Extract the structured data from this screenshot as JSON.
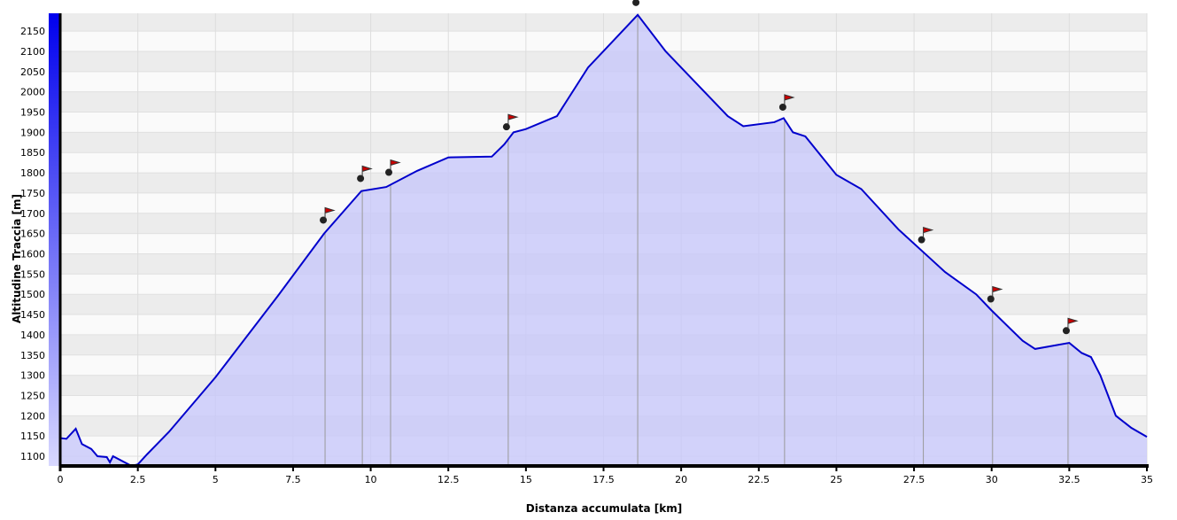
{
  "chart_data": {
    "type": "area",
    "x_label": "Distanza accumulata [km]",
    "y_label": "Altitudine Traccia [m]",
    "color": "#0000cc",
    "fill": "#c8c8fa",
    "x": [
      0,
      0.2,
      0.5,
      0.7,
      1.0,
      1.2,
      1.5,
      1.6,
      1.7,
      2.3,
      2.5,
      2.8,
      3.5,
      5,
      7,
      8.5,
      9.7,
      10.5,
      11.5,
      12.5,
      13.9,
      14.3,
      14.6,
      15.0,
      16,
      17,
      18.6,
      19.5,
      21.5,
      22,
      23.0,
      23.3,
      23.6,
      24,
      25,
      25.8,
      27.0,
      28.0,
      28.5,
      29.5,
      30,
      31.0,
      31.4,
      32.5,
      32.9,
      33.2,
      33.5,
      34.0,
      34.5,
      35
    ],
    "values": [
      1145,
      1143,
      1168,
      1130,
      1118,
      1100,
      1098,
      1085,
      1100,
      1076,
      1080,
      1105,
      1160,
      1295,
      1495,
      1650,
      1755,
      1765,
      1805,
      1838,
      1840,
      1870,
      1900,
      1908,
      1940,
      2060,
      2190,
      2100,
      1940,
      1915,
      1925,
      1935,
      1900,
      1890,
      1795,
      1760,
      1660,
      1590,
      1555,
      1500,
      1460,
      1385,
      1365,
      1380,
      1355,
      1345,
      1300,
      1200,
      1170,
      1148
    ],
    "waypoints": [
      8.53,
      9.73,
      10.64,
      14.43,
      18.6,
      23.33,
      27.8,
      30.03,
      32.46
    ],
    "xlim": [
      0,
      35
    ],
    "ylim": [
      1076,
      2194
    ],
    "xticks": [
      0,
      2.5,
      5,
      7.5,
      10,
      12.5,
      15,
      17.5,
      20,
      22.5,
      25,
      27.5,
      30,
      32.5,
      35
    ],
    "yticks": [
      1100,
      1150,
      1200,
      1250,
      1300,
      1350,
      1400,
      1450,
      1500,
      1550,
      1600,
      1650,
      1700,
      1750,
      1800,
      1850,
      1900,
      1950,
      2000,
      2050,
      2100,
      2150
    ],
    "grid": true
  }
}
